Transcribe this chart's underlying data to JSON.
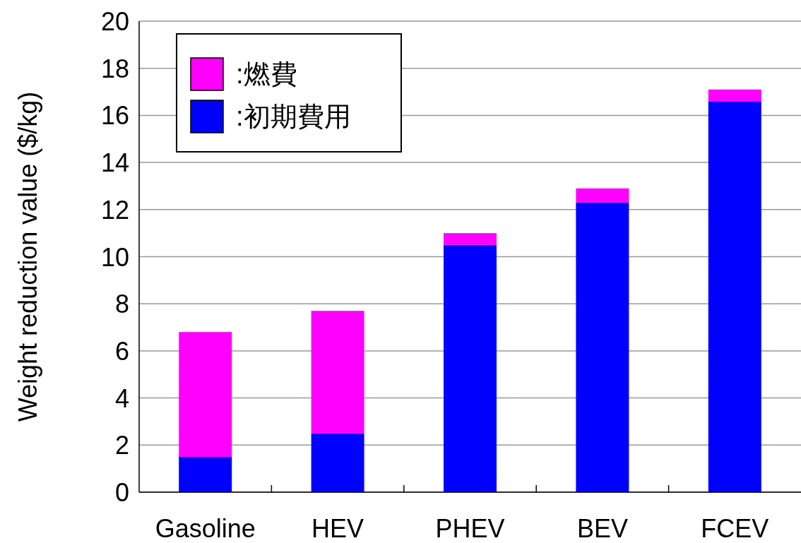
{
  "chart_data": {
    "type": "bar",
    "stacked": true,
    "ylabel": "Weight reduction value ($/kg)",
    "categories": [
      "Gasoline",
      "HEV",
      "PHEV",
      "BEV",
      "FCEV"
    ],
    "series": [
      {
        "name": ":初期費用",
        "color": "#0000ff",
        "values": [
          1.5,
          2.5,
          10.5,
          12.3,
          16.6
        ]
      },
      {
        "name": ":燃費",
        "color": "#ff00ff",
        "values": [
          5.3,
          5.2,
          0.5,
          0.6,
          0.5
        ]
      }
    ],
    "ylim": [
      0,
      20
    ],
    "yticks": [
      0,
      2,
      4,
      6,
      8,
      10,
      12,
      14,
      16,
      18,
      20
    ],
    "grid": "y",
    "legend": "top left"
  }
}
